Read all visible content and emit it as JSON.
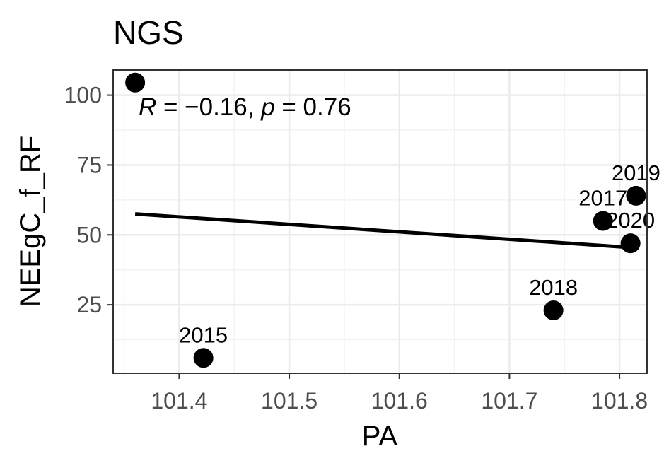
{
  "chart_data": {
    "type": "scatter",
    "title": "NGS",
    "xlabel": "PA",
    "ylabel": "NEEgC_f_RF",
    "xlim": [
      101.34,
      101.825
    ],
    "ylim": [
      0.5,
      109
    ],
    "x_ticks": [
      101.4,
      101.5,
      101.6,
      101.7,
      101.8
    ],
    "x_tick_labels": [
      "101.4",
      "101.5",
      "101.6",
      "101.7",
      "101.8"
    ],
    "y_ticks": [
      25,
      50,
      75,
      100
    ],
    "y_tick_labels": [
      "25",
      "50",
      "75",
      "100"
    ],
    "grid": true,
    "points": [
      {
        "x": 101.36,
        "y": 104.5,
        "label": ""
      },
      {
        "x": 101.422,
        "y": 6,
        "label": "2015"
      },
      {
        "x": 101.74,
        "y": 23,
        "label": "2018"
      },
      {
        "x": 101.785,
        "y": 55,
        "label": "2017"
      },
      {
        "x": 101.815,
        "y": 64,
        "label": "2019"
      },
      {
        "x": 101.81,
        "y": 47,
        "label": "2020"
      }
    ],
    "regression_line": {
      "x": [
        101.36,
        101.81
      ],
      "y": [
        57.5,
        45.5
      ]
    },
    "annotation": {
      "r_symbol": "R",
      "r_value": " = −0.16, ",
      "p_symbol": "p",
      "p_value": " = 0.76"
    },
    "colors": {
      "points": "#000000",
      "line": "#000000",
      "grid_major": "#ebebeb",
      "grid_minor": "#f3f3f3",
      "panel_border": "#333333",
      "tick_label": "#4d4d4d"
    }
  }
}
